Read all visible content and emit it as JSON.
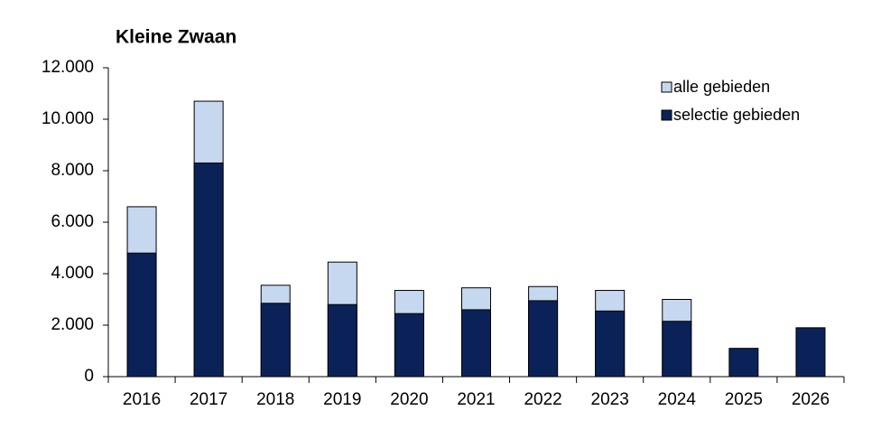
{
  "chart_data": {
    "type": "bar",
    "title": "Kleine Zwaan",
    "categories": [
      "2016",
      "2017",
      "2018",
      "2019",
      "2020",
      "2021",
      "2022",
      "2023",
      "2024",
      "2025",
      "2026"
    ],
    "series": [
      {
        "name": "alle gebieden",
        "color": "#c6d7f0",
        "values": [
          6600,
          10700,
          3550,
          4450,
          3350,
          3450,
          3500,
          3350,
          3000,
          null,
          null
        ]
      },
      {
        "name": "selectie gebieden",
        "color": "#0b2259",
        "values": [
          4800,
          8300,
          2850,
          2800,
          2450,
          2600,
          2950,
          2550,
          2150,
          1100,
          1900
        ]
      }
    ],
    "ylim": [
      0,
      12000
    ],
    "yticks": [
      0,
      {
        "value": 2000,
        "label": "2.000"
      },
      {
        "value": 4000,
        "label": "4.000"
      },
      {
        "value": 6000,
        "label": "6.000"
      },
      {
        "value": 8000,
        "label": "8.000"
      },
      {
        "value": 10000,
        "label": "10.000"
      },
      {
        "value": 12000,
        "label": "12.000"
      }
    ],
    "grid": false,
    "legend": "upper right"
  }
}
